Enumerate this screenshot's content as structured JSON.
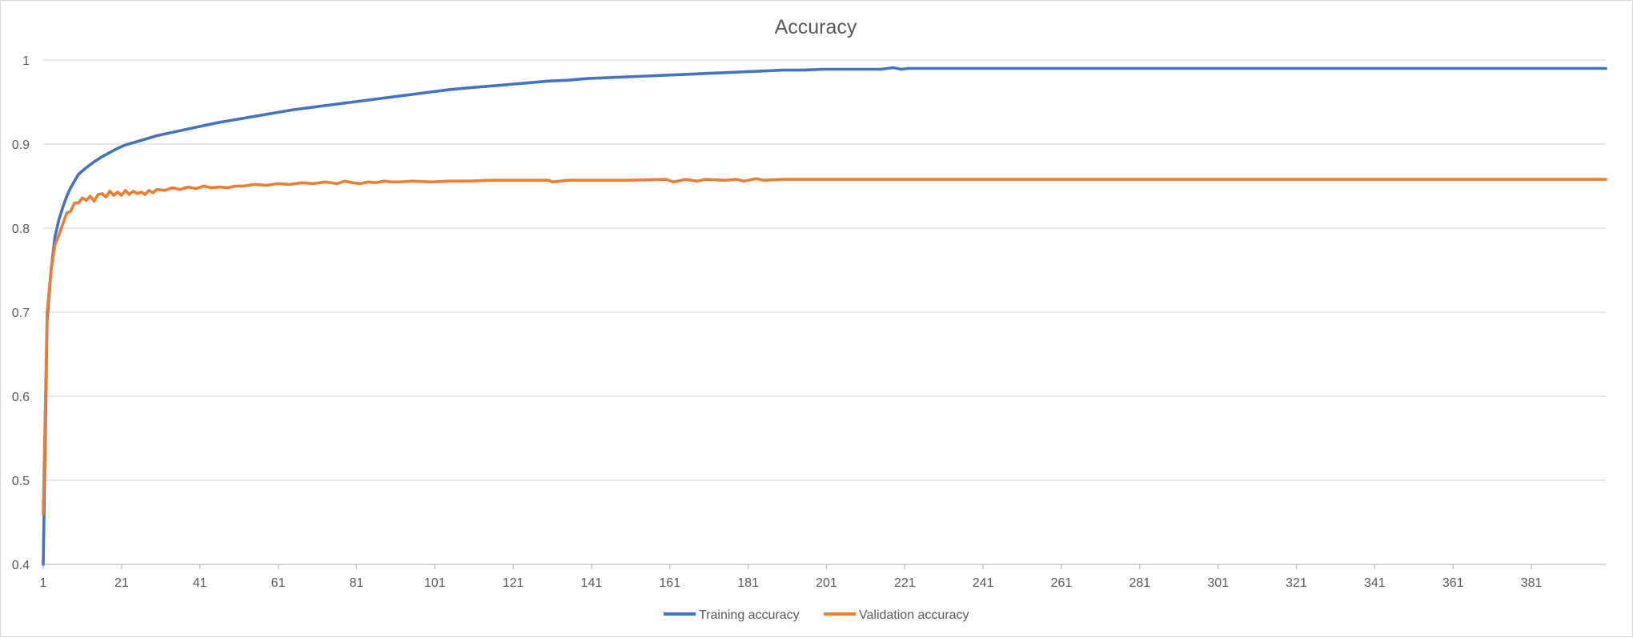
{
  "chart_data": {
    "type": "line",
    "title": "Accuracy",
    "xlabel": "",
    "ylabel": "",
    "xlim": [
      1,
      400
    ],
    "ylim": [
      0.4,
      1
    ],
    "y_ticks": [
      "0.4",
      "0.5",
      "0.6",
      "0.7",
      "0.8",
      "0.9",
      "1"
    ],
    "x_ticks": [
      "1",
      "21",
      "41",
      "61",
      "81",
      "101",
      "121",
      "141",
      "161",
      "181",
      "201",
      "221",
      "241",
      "261",
      "281",
      "301",
      "321",
      "341",
      "361",
      "381"
    ],
    "grid": true,
    "legend_position": "bottom",
    "series": [
      {
        "name": "Training accuracy",
        "color": "#4472C4",
        "x": [
          1,
          2,
          3,
          4,
          5,
          6,
          7,
          8,
          9,
          10,
          12,
          14,
          16,
          18,
          20,
          22,
          25,
          30,
          35,
          40,
          45,
          50,
          55,
          60,
          65,
          70,
          75,
          80,
          85,
          90,
          95,
          100,
          105,
          110,
          115,
          120,
          125,
          130,
          135,
          140,
          145,
          150,
          155,
          160,
          165,
          170,
          175,
          180,
          185,
          190,
          195,
          200,
          205,
          210,
          215,
          218,
          220,
          222,
          225,
          240,
          300,
          350,
          400
        ],
        "y": [
          0.4,
          0.69,
          0.75,
          0.79,
          0.81,
          0.825,
          0.838,
          0.848,
          0.856,
          0.864,
          0.872,
          0.879,
          0.885,
          0.89,
          0.895,
          0.899,
          0.903,
          0.91,
          0.915,
          0.92,
          0.925,
          0.929,
          0.933,
          0.937,
          0.941,
          0.944,
          0.947,
          0.95,
          0.953,
          0.956,
          0.959,
          0.962,
          0.965,
          0.967,
          0.969,
          0.971,
          0.973,
          0.975,
          0.976,
          0.978,
          0.979,
          0.98,
          0.981,
          0.982,
          0.983,
          0.984,
          0.985,
          0.986,
          0.987,
          0.988,
          0.988,
          0.989,
          0.989,
          0.989,
          0.989,
          0.991,
          0.989,
          0.99,
          0.99,
          0.99,
          0.99,
          0.99,
          0.99
        ]
      },
      {
        "name": "Validation accuracy",
        "color": "#ED7D31",
        "x": [
          1,
          2,
          3,
          4,
          5,
          6,
          7,
          8,
          9,
          10,
          11,
          12,
          13,
          14,
          15,
          16,
          17,
          18,
          19,
          20,
          21,
          22,
          23,
          24,
          25,
          26,
          27,
          28,
          29,
          30,
          32,
          34,
          36,
          38,
          40,
          42,
          44,
          46,
          48,
          50,
          52,
          55,
          58,
          61,
          64,
          67,
          70,
          73,
          76,
          78,
          80,
          82,
          84,
          86,
          88,
          90,
          92,
          95,
          100,
          105,
          110,
          115,
          120,
          130,
          131,
          135,
          140,
          150,
          160,
          162,
          165,
          168,
          170,
          175,
          178,
          180,
          183,
          185,
          190,
          200,
          250,
          300,
          350,
          400
        ],
        "y": [
          0.46,
          0.7,
          0.75,
          0.78,
          0.792,
          0.805,
          0.818,
          0.82,
          0.83,
          0.83,
          0.836,
          0.833,
          0.838,
          0.832,
          0.84,
          0.841,
          0.837,
          0.844,
          0.839,
          0.843,
          0.839,
          0.845,
          0.84,
          0.844,
          0.841,
          0.843,
          0.84,
          0.845,
          0.842,
          0.846,
          0.845,
          0.848,
          0.846,
          0.849,
          0.847,
          0.85,
          0.848,
          0.849,
          0.848,
          0.85,
          0.85,
          0.852,
          0.851,
          0.853,
          0.852,
          0.854,
          0.853,
          0.855,
          0.853,
          0.856,
          0.854,
          0.853,
          0.855,
          0.854,
          0.856,
          0.855,
          0.855,
          0.856,
          0.855,
          0.856,
          0.856,
          0.857,
          0.857,
          0.857,
          0.855,
          0.857,
          0.857,
          0.857,
          0.858,
          0.855,
          0.858,
          0.856,
          0.858,
          0.857,
          0.858,
          0.856,
          0.859,
          0.857,
          0.858,
          0.858,
          0.858,
          0.858,
          0.858,
          0.858
        ]
      }
    ]
  }
}
